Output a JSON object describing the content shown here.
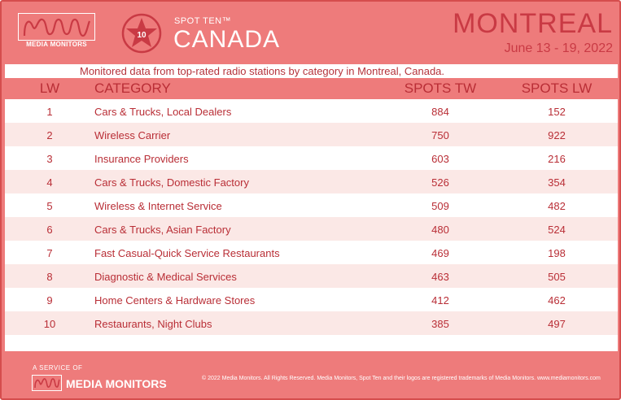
{
  "header": {
    "brand": "MEDIA MONITORS",
    "badge_number": "10",
    "spot_ten": "SPOT TEN™",
    "country": "CANADA",
    "city": "MONTREAL",
    "dates": "June 13 - 19, 2022"
  },
  "subtitle": "Monitored data from top-rated radio stations by category in Montreal, Canada.",
  "columns": {
    "lw": "LW",
    "category": "CATEGORY",
    "spots_tw": "SPOTS TW",
    "spots_lw": "SPOTS LW"
  },
  "rows": [
    {
      "lw": "1",
      "category": "Cars & Trucks, Local Dealers",
      "tw": "884",
      "lwv": "152"
    },
    {
      "lw": "2",
      "category": "Wireless Carrier",
      "tw": "750",
      "lwv": "922"
    },
    {
      "lw": "3",
      "category": "Insurance Providers",
      "tw": "603",
      "lwv": "216"
    },
    {
      "lw": "4",
      "category": "Cars & Trucks, Domestic Factory",
      "tw": "526",
      "lwv": "354"
    },
    {
      "lw": "5",
      "category": "Wireless & Internet Service",
      "tw": "509",
      "lwv": "482"
    },
    {
      "lw": "6",
      "category": "Cars & Trucks, Asian Factory",
      "tw": "480",
      "lwv": "524"
    },
    {
      "lw": "7",
      "category": "Fast Casual-Quick Service Restaurants",
      "tw": "469",
      "lwv": "198"
    },
    {
      "lw": "8",
      "category": "Diagnostic & Medical Services",
      "tw": "463",
      "lwv": "505"
    },
    {
      "lw": "9",
      "category": "Home Centers & Hardware Stores",
      "tw": "412",
      "lwv": "462"
    },
    {
      "lw": "10",
      "category": "Restaurants, Night Clubs",
      "tw": "385",
      "lwv": "497"
    }
  ],
  "footer": {
    "service": "A SERVICE OF",
    "brand": "MEDIA MONITORS",
    "copyright": "© 2022 Media Monitors. All Rights Reserved. Media Monitors, Spot Ten and their logos are registered trademarks of Media Monitors. www.mediamonitors.com"
  },
  "colors": {
    "brand_red": "#ee7b7b",
    "text_red": "#b92e36",
    "stripe": "#fbe8e6"
  }
}
